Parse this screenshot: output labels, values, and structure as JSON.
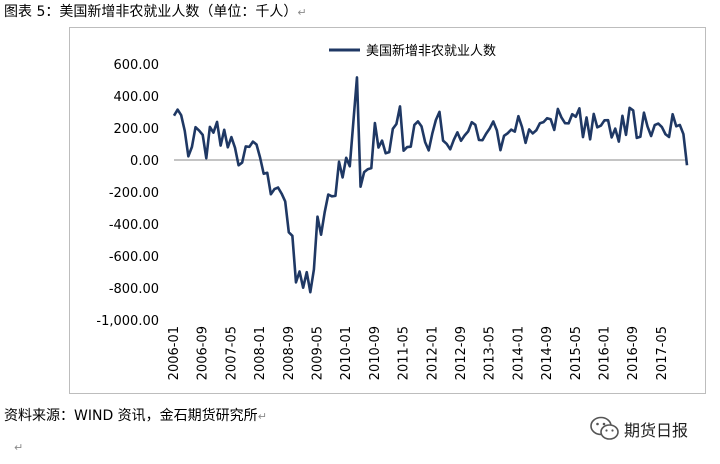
{
  "caption": {
    "text": "图表 5：美国新增非农就业人数（单位：千人）",
    "mark": "↵"
  },
  "source": {
    "text": "资料来源：WIND 资讯，金石期货研究所",
    "mark": "↵"
  },
  "tail_mark": "↵",
  "brand": {
    "name": "期货日报",
    "icon": "wechat-icon"
  },
  "colors": {
    "series": "#1f3864",
    "zero_line": "#8a8a8a",
    "frame": "#bdbdbd"
  },
  "chart_data": {
    "type": "line",
    "title": "",
    "xlabel": "",
    "ylabel": "",
    "ylim": [
      -1000,
      600
    ],
    "yticks": [
      600,
      400,
      200,
      0,
      -200,
      -400,
      -600,
      -800,
      -1000
    ],
    "ytick_labels": [
      "600.00",
      "400.00",
      "200.00",
      "0.00",
      "-200.00",
      "-400.00",
      "-600.00",
      "-800.00",
      "-1,000.00"
    ],
    "xticks": [
      "2006-01",
      "2006-09",
      "2007-05",
      "2008-01",
      "2008-09",
      "2009-05",
      "2010-01",
      "2010-09",
      "2011-05",
      "2012-01",
      "2012-09",
      "2013-05",
      "2014-01",
      "2014-09",
      "2015-05",
      "2016-01",
      "2016-09",
      "2017-05"
    ],
    "x_start": "2006-01",
    "grid": false,
    "legend": "top-center",
    "series": [
      {
        "name": "美国新增非农就业人数",
        "values": [
          277,
          315,
          280,
          182,
          23,
          82,
          205,
          184,
          157,
          11,
          207,
          171,
          238,
          90,
          189,
          79,
          143,
          77,
          -33,
          -16,
          85,
          82,
          115,
          97,
          15,
          -86,
          -80,
          -214,
          -182,
          -172,
          -210,
          -259,
          -452,
          -474,
          -765,
          -697,
          -798,
          -701,
          -826,
          -684,
          -354,
          -467,
          -327,
          -216,
          -227,
          -224,
          -11,
          -109,
          14,
          -39,
          239,
          516,
          -167,
          -76,
          -58,
          -51,
          231,
          78,
          121,
          42,
          49,
          195,
          225,
          335,
          58,
          81,
          83,
          219,
          241,
          210,
          112,
          60,
          165,
          250,
          301,
          121,
          101,
          67,
          126,
          173,
          120,
          153,
          179,
          236,
          220,
          125,
          124,
          164,
          197,
          241,
          185,
          61,
          151,
          167,
          190,
          177,
          274,
          207,
          107,
          191,
          166,
          186,
          230,
          237,
          261,
          255,
          188,
          319,
          266,
          230,
          229,
          286,
          270,
          323,
          143,
          266,
          129,
          288,
          204,
          215,
          248,
          249,
          141,
          196,
          115,
          276,
          157,
          326,
          310,
          138,
          145,
          296,
          209,
          150,
          218,
          228,
          206,
          161,
          144,
          286,
          211,
          219,
          162,
          -33
        ]
      }
    ]
  }
}
